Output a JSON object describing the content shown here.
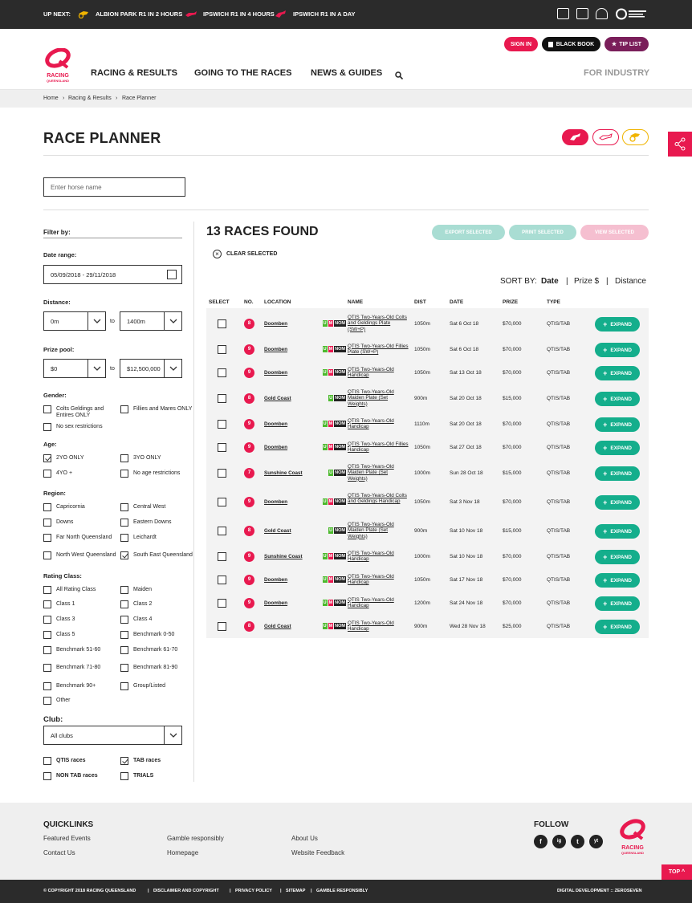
{
  "topbar": {
    "up_next": "UP NEXT:",
    "events": [
      {
        "label": "ALBION PARK R1 IN 2 HOURS",
        "icon": "harness-icon",
        "color": "#f0b400"
      },
      {
        "label": "IPSWICH R1 IN 4 HOURS",
        "icon": "greyhound-icon",
        "color": "#e8194f"
      },
      {
        "label": "IPSWICH R1 IN A DAY",
        "icon": "thoroughbred-icon",
        "color": "#e8194f"
      }
    ]
  },
  "header": {
    "sign_in": "SIGN IN",
    "black_book": "BLACK BOOK",
    "tip_list": "TIP LIST",
    "logo_text": "RACING",
    "logo_sub": "QUEENSLAND",
    "nav": [
      "RACING & RESULTS",
      "GOING TO THE RACES",
      "NEWS & GUIDES"
    ],
    "for_industry": "FOR INDUSTRY"
  },
  "breadcrumb": [
    "Home",
    "Racing & Results",
    "Race Planner"
  ],
  "page_title": "RACE PLANNER",
  "search_placeholder": "Enter horse name",
  "filters": {
    "title": "Filter by:",
    "date_label": "Date range:",
    "date_value": "05/09/2018 - 29/11/2018",
    "distance_label": "Distance:",
    "distance_from": "0m",
    "distance_to": "1400m",
    "to": "to",
    "prize_label": "Prize pool:",
    "prize_from": "$0",
    "prize_to": "$12,500,000",
    "gender_label": "Gender:",
    "gender": [
      {
        "label": "Colts Geldings and Entires ONLY",
        "checked": false
      },
      {
        "label": "Fillies and Mares ONLY",
        "checked": false
      },
      {
        "label": "No sex restrictions",
        "checked": false
      }
    ],
    "age_label": "Age:",
    "age": [
      {
        "label": "2YO ONLY",
        "checked": true
      },
      {
        "label": "3YO ONLY",
        "checked": false
      },
      {
        "label": "4YO +",
        "checked": false
      },
      {
        "label": "No age restrictions",
        "checked": false
      }
    ],
    "region_label": "Region:",
    "region": [
      {
        "label": "Capricornia",
        "checked": false
      },
      {
        "label": "Central West",
        "checked": false
      },
      {
        "label": "Downs",
        "checked": false
      },
      {
        "label": "Eastern Downs",
        "checked": false
      },
      {
        "label": "Far North Queensland",
        "checked": false
      },
      {
        "label": "Leichardt",
        "checked": false
      },
      {
        "label": "North West Queensland",
        "checked": false
      },
      {
        "label": "South East Queensland",
        "checked": true
      }
    ],
    "rating_label": "Rating Class:",
    "rating": [
      {
        "label": "All Rating Class",
        "checked": false
      },
      {
        "label": "Maiden",
        "checked": false
      },
      {
        "label": "Class 1",
        "checked": false
      },
      {
        "label": "Class 2",
        "checked": false
      },
      {
        "label": "Class 3",
        "checked": false
      },
      {
        "label": "Class 4",
        "checked": false
      },
      {
        "label": "Class 5",
        "checked": false
      },
      {
        "label": "Benchmark 0-50",
        "checked": false
      },
      {
        "label": "Benchmark 51-60",
        "checked": false
      },
      {
        "label": "Benchmark 61-70",
        "checked": false
      },
      {
        "label": "Benchmark 71-80",
        "checked": false
      },
      {
        "label": "Benchmark 81-90",
        "checked": false
      },
      {
        "label": "Benchmark 90+",
        "checked": false
      },
      {
        "label": "Group/Listed",
        "checked": false
      },
      {
        "label": "Other",
        "checked": false
      }
    ],
    "club_label": "Club:",
    "club_value": "All clubs",
    "race_types": [
      {
        "label": "QTIS races",
        "checked": false
      },
      {
        "label": "TAB races",
        "checked": true
      },
      {
        "label": "NON TAB races",
        "checked": false
      },
      {
        "label": "TRIALS",
        "checked": false
      }
    ]
  },
  "results": {
    "title": "13 RACES FOUND",
    "export": "EXPORT SELECTED",
    "print": "PRINT SELECTED",
    "view": "VIEW SELECTED",
    "clear": "CLEAR SELECTED",
    "sort_by": "SORT BY:",
    "sort_options": [
      "Date",
      "Prize $",
      "Distance"
    ],
    "sort_sep": "|",
    "columns": [
      "SELECT",
      "NO.",
      "LOCATION",
      "NAME",
      "DIST",
      "DATE",
      "PRIZE",
      "TYPE"
    ],
    "expand": "EXPAND",
    "rows": [
      {
        "no": "8",
        "location": "Doomben",
        "badges": [
          "U",
          "M",
          "NOM"
        ],
        "name": "QTIS Two-Years-Old Colts and Geldings Plate (SW+P)",
        "dist": "1050m",
        "date": "Sat 6 Oct 18",
        "prize": "$70,000",
        "type": "QTIS/TAB"
      },
      {
        "no": "9",
        "location": "Doomben",
        "badges": [
          "U",
          "M",
          "NOM"
        ],
        "name": "QTIS Two-Years-Old Fillies Plate (SW+P)",
        "dist": "1050m",
        "date": "Sat 6 Oct 18",
        "prize": "$70,000",
        "type": "QTIS/TAB"
      },
      {
        "no": "9",
        "location": "Doomben",
        "badges": [
          "U",
          "M",
          "NOM"
        ],
        "name": "QTIS Two-Years-Old Handicap",
        "dist": "1050m",
        "date": "Sat 13 Oct 18",
        "prize": "$70,000",
        "type": "QTIS/TAB"
      },
      {
        "no": "8",
        "location": "Gold Coast",
        "badges": [
          "U",
          "NOM"
        ],
        "name": "QTIS Two-Years-Old Maiden Plate (Set Weights)",
        "dist": "900m",
        "date": "Sat 20 Oct 18",
        "prize": "$15,000",
        "type": "QTIS/TAB"
      },
      {
        "no": "9",
        "location": "Doomben",
        "badges": [
          "U",
          "M",
          "NOM"
        ],
        "name": "QTIS Two-Years-Old Handicap",
        "dist": "1110m",
        "date": "Sat 20 Oct 18",
        "prize": "$70,000",
        "type": "QTIS/TAB"
      },
      {
        "no": "9",
        "location": "Doomben",
        "badges": [
          "U",
          "M",
          "NOM"
        ],
        "name": "QTIS Two-Years-Old Fillies Handicap",
        "dist": "1050m",
        "date": "Sat 27 Oct 18",
        "prize": "$70,000",
        "type": "QTIS/TAB"
      },
      {
        "no": "7",
        "location": "Sunshine Coast",
        "badges": [
          "U",
          "NOM"
        ],
        "name": "QTIS Two-Years-Old Maiden Plate (Set Weights)",
        "dist": "1000m",
        "date": "Sun 28 Oct 18",
        "prize": "$15,000",
        "type": "QTIS/TAB"
      },
      {
        "no": "9",
        "location": "Doomben",
        "badges": [
          "U",
          "M",
          "NOM"
        ],
        "name": "QTIS Two-Years-Old Colts and Geldings Handicap",
        "dist": "1050m",
        "date": "Sat 3 Nov 18",
        "prize": "$70,000",
        "type": "QTIS/TAB"
      },
      {
        "no": "8",
        "location": "Gold Coast",
        "badges": [
          "U",
          "NOM"
        ],
        "name": "QTIS Two-Years-Old Maiden Plate (Set Weights)",
        "dist": "900m",
        "date": "Sat 10 Nov 18",
        "prize": "$15,000",
        "type": "QTIS/TAB"
      },
      {
        "no": "9",
        "location": "Sunshine Coast",
        "badges": [
          "U",
          "M",
          "NOM"
        ],
        "name": "QTIS Two-Years-Old Handicap",
        "dist": "1000m",
        "date": "Sat 10 Nov 18",
        "prize": "$70,000",
        "type": "QTIS/TAB"
      },
      {
        "no": "9",
        "location": "Doomben",
        "badges": [
          "U",
          "M",
          "NOM"
        ],
        "name": "QTIS Two-Years-Old Handicap",
        "dist": "1050m",
        "date": "Sat 17 Nov 18",
        "prize": "$70,000",
        "type": "QTIS/TAB"
      },
      {
        "no": "9",
        "location": "Doomben",
        "badges": [
          "U",
          "M",
          "NOM"
        ],
        "name": "QTIS Two-Years-Old Handicap",
        "dist": "1200m",
        "date": "Sat 24 Nov 18",
        "prize": "$70,000",
        "type": "QTIS/TAB"
      },
      {
        "no": "8",
        "location": "Gold Coast",
        "badges": [
          "U",
          "M",
          "NOM"
        ],
        "name": "QTIS Two-Years-Old Handicap",
        "dist": "900m",
        "date": "Wed 28 Nov 18",
        "prize": "$25,000",
        "type": "QTIS/TAB"
      }
    ]
  },
  "footer": {
    "quicklinks": "QUICKLINKS",
    "links": [
      "Featured Events",
      "Contact Us",
      "Gamble responsibly",
      "Homepage",
      "About Us",
      "Website Feedback"
    ],
    "follow": "FOLLOW",
    "social": [
      "f",
      "ig",
      "t",
      "yt"
    ],
    "top": "TOP",
    "copyright": "© COPYRIGHT 2018 RACING QUEENSLAND",
    "legal": [
      "DISCLAIMER AND COPYRIGHT",
      "PRIVACY POLICY",
      "SITEMAP",
      "GAMBLE RESPONSIBLY"
    ],
    "dev": "DIGITAL DEVELOPMENT :: ZEROSEVEN"
  },
  "colors": {
    "brand": "#e8194f",
    "expand": "#14ae8c",
    "u_badge": "#4cb92d",
    "m_badge": "#e8194f",
    "nom_badge": "#222222"
  }
}
